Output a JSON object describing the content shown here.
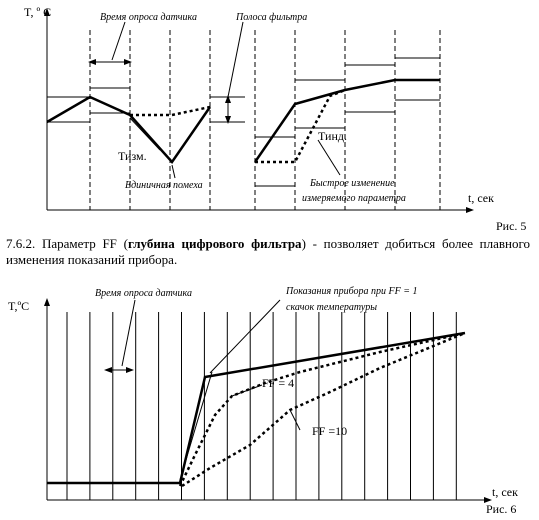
{
  "figure5": {
    "y_label": "T, º C",
    "x_label": "t, сек",
    "poll_label": "Время опроса датчика",
    "band_label": "Полоса фильтра",
    "t_meas": "Тизм.",
    "t_ind": "Тинд.",
    "noise_label": "Единичная помеха",
    "fast_change_lines": [
      "Быстрое изменение",
      "измеряемого параметра"
    ],
    "caption": "Рис. 5"
  },
  "paragraph": {
    "before": "7.6.2. Параметр FF (",
    "bold": "глубина цифрового фильтра",
    "after": ") - позволяет добиться более плавного изменения показаний прибора."
  },
  "figure6": {
    "y_label": "T,ºC",
    "x_label": "t, сек",
    "poll_label": "Время опроса датчика",
    "ff1_label": "Показания прибора при FF = 1",
    "jump_label": "скачок температуры",
    "ff4_label": "FF = 4",
    "ff10_label": "FF =10",
    "caption": "Рис. 6"
  }
}
